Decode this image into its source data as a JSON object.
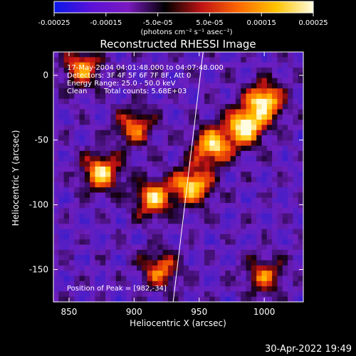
{
  "chart_data": {
    "type": "heatmap",
    "title": "Reconstructed RHESSI Image",
    "xlabel": "Heliocentric X (arcsec)",
    "ylabel": "Heliocentric Y (arcsec)",
    "xlim": [
      838,
      1030
    ],
    "ylim": [
      -175,
      18
    ],
    "x_ticks": [
      850,
      900,
      950,
      1000
    ],
    "y_ticks": [
      0,
      -50,
      -100,
      -150
    ],
    "colorbar": {
      "range": [
        -0.00025,
        0.00025
      ],
      "ticks": [
        "-0.00025",
        "-0.00015",
        "-5.0e-05",
        "5.0e-05",
        "0.00015",
        "0.00025"
      ],
      "units": "(photons cm⁻² s⁻¹ asec⁻²)",
      "colors": [
        "#0a17e8",
        "#5a12d8",
        "#7a19c0",
        "#000000",
        "#c11414",
        "#ff6a00",
        "#ffc400",
        "#fffce0"
      ]
    },
    "annotations": {
      "time": "17-May-2004 04:01:48.000 to 04:07:48.000",
      "detectors": "Detectors: 3F 4F 5F 6F 7F 8F, Att 0",
      "energy": "Energy Range: 25.0 - 50.0 keV",
      "clean_label": "Clean",
      "total_counts": "Total counts: 5.68E+03",
      "peak": "Position of Peak = [982,-34]"
    },
    "bright_regions": [
      {
        "x": 985,
        "y": -40,
        "level": 0.95
      },
      {
        "x": 1000,
        "y": -20,
        "level": 0.9
      },
      {
        "x": 960,
        "y": -55,
        "level": 0.85
      },
      {
        "x": 875,
        "y": -75,
        "level": 0.8
      },
      {
        "x": 945,
        "y": -85,
        "level": 0.85
      },
      {
        "x": 915,
        "y": -95,
        "level": 0.8
      },
      {
        "x": 860,
        "y": 5,
        "level": 0.65
      },
      {
        "x": 900,
        "y": -40,
        "level": 0.6
      },
      {
        "x": 920,
        "y": -150,
        "level": 0.6
      },
      {
        "x": 1000,
        "y": -155,
        "level": 0.55
      }
    ],
    "limb_line": [
      [
        930,
        -175
      ],
      [
        953,
        18
      ]
    ]
  },
  "footer": {
    "timestamp": "30-Apr-2022 19:49"
  }
}
